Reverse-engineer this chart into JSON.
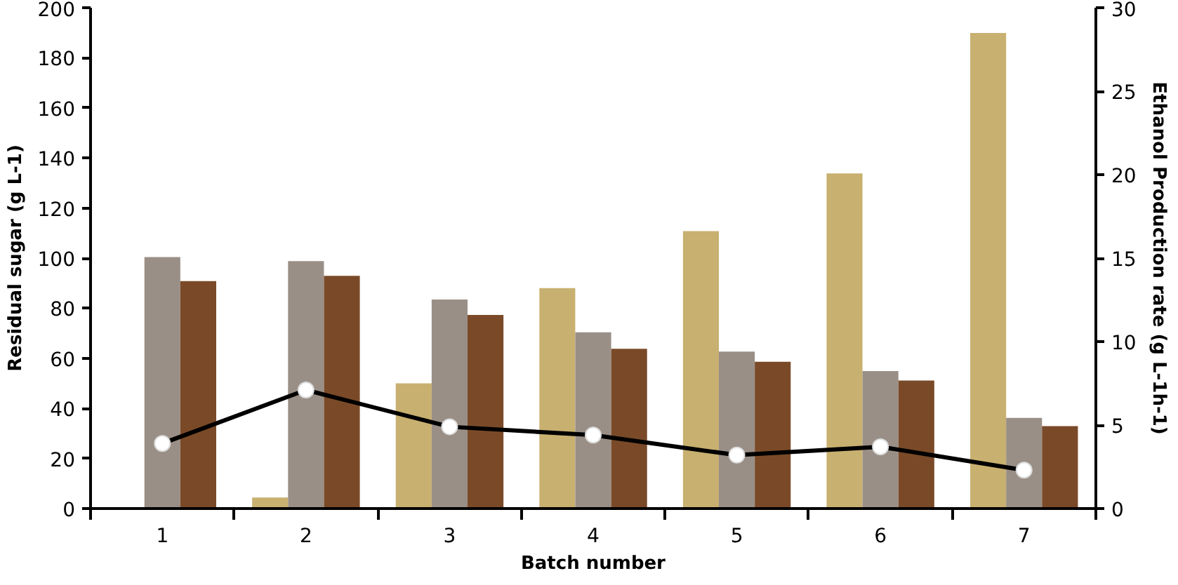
{
  "chart_data": {
    "type": "bar",
    "xlabel": "Batch number",
    "ylabel": "Residual sugar (g L-1)",
    "y2label": "Ethanol Production rate (g L-1h-1)",
    "categories": [
      "1",
      "2",
      "3",
      "4",
      "5",
      "6",
      "7"
    ],
    "series": [
      {
        "color": "#c8b070",
        "values": [
          null,
          4.4,
          50,
          88,
          110.8,
          133.8,
          189.9
        ]
      },
      {
        "color": "#9a8f86",
        "values": [
          100.4,
          98.8,
          83.5,
          70.4,
          62.7,
          54.9,
          36.2
        ]
      },
      {
        "color": "#7a4a28",
        "values": [
          90.8,
          92.9,
          77.3,
          63.8,
          58.6,
          51.1,
          32.9
        ]
      },
      {
        "type": "line",
        "axis": "y2",
        "color": "#000000",
        "marker": "circle",
        "values": [
          3.9,
          7.1,
          4.9,
          4.4,
          3.2,
          3.7,
          2.3
        ]
      }
    ],
    "ylim": [
      0,
      200
    ],
    "yticks": [
      0,
      20,
      40,
      60,
      80,
      100,
      120,
      140,
      160,
      180,
      200
    ],
    "y2lim": [
      0,
      30
    ],
    "y2ticks": [
      0,
      5,
      10,
      15,
      20,
      25,
      30
    ],
    "grid": false
  }
}
